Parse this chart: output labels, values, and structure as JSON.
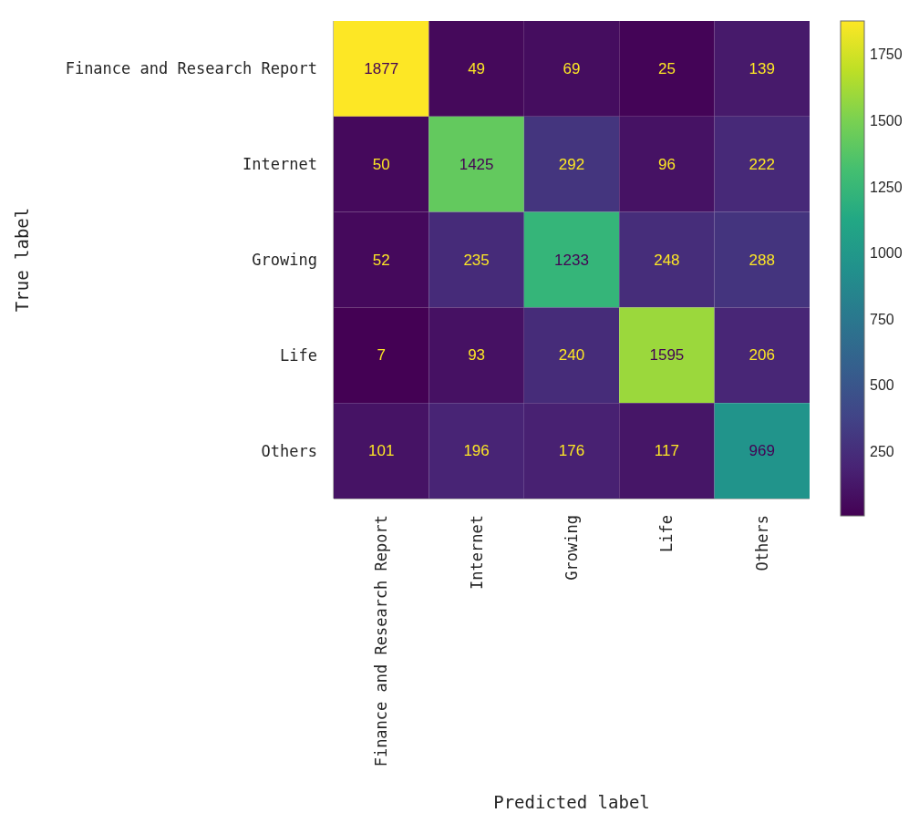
{
  "chart_data": {
    "type": "heatmap",
    "xlabel": "Predicted label",
    "ylabel": "True label",
    "categories": [
      "Finance and Research Report",
      "Internet",
      "Growing",
      "Life",
      "Others"
    ],
    "y_categories": [
      "Finance and Research Report",
      "Internet",
      "Growing",
      "Life",
      "Others"
    ],
    "cells": [
      [
        1877,
        49,
        69,
        25,
        139
      ],
      [
        50,
        1425,
        292,
        96,
        222
      ],
      [
        52,
        235,
        1233,
        248,
        288
      ],
      [
        7,
        93,
        240,
        1595,
        206
      ],
      [
        101,
        196,
        176,
        117,
        969
      ]
    ],
    "data_labels": true,
    "clim": [
      7,
      1877
    ],
    "cticks": [
      250,
      500,
      750,
      1000,
      1250,
      1500,
      1750
    ]
  }
}
